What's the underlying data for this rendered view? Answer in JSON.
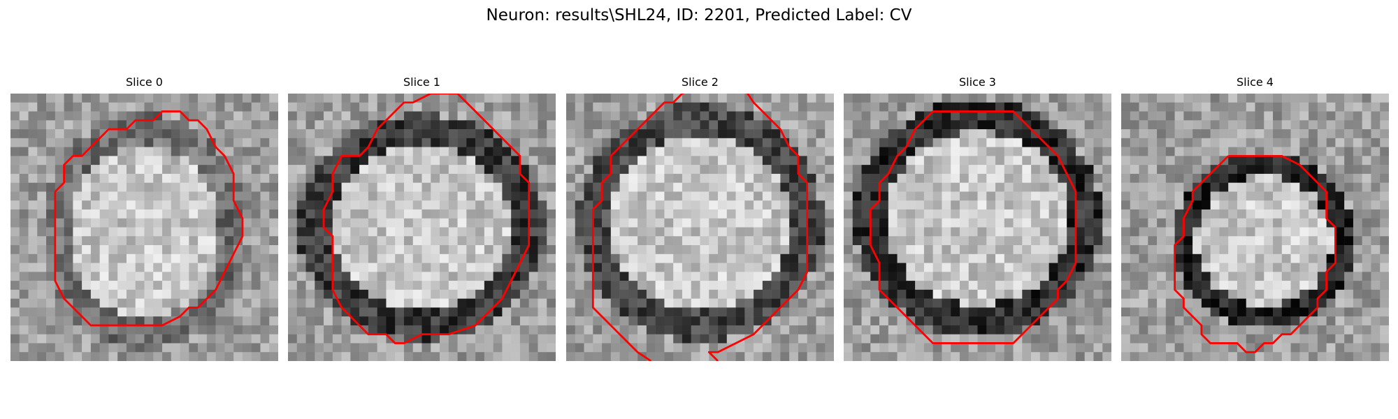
{
  "figure": {
    "title": "Neuron: results\\SHL24, ID: 2201, Predicted Label: CV"
  },
  "contour_color": "#ff0000",
  "slices": [
    {
      "label": "Slice 0"
    },
    {
      "label": "Slice 1"
    },
    {
      "label": "Slice 2"
    },
    {
      "label": "Slice 3"
    },
    {
      "label": "Slice 4"
    }
  ]
}
